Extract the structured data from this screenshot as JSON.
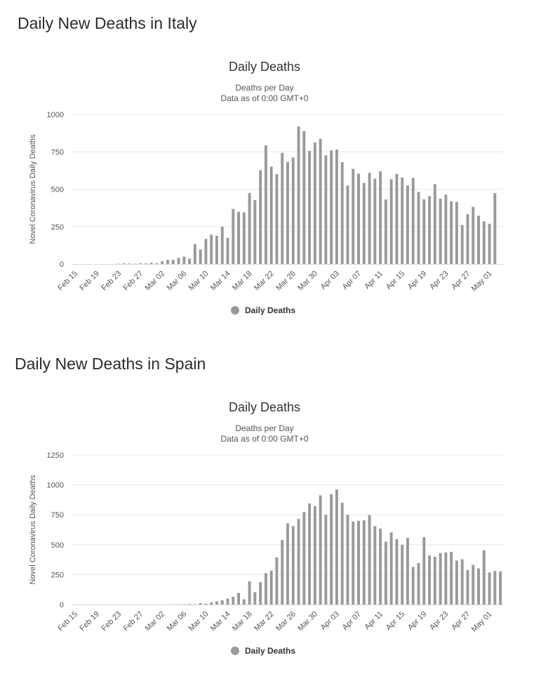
{
  "page": {
    "italy_heading": "Daily New Deaths in Italy",
    "spain_heading": "Daily New Deaths in Spain"
  },
  "chart_data": [
    {
      "id": "italy",
      "type": "bar",
      "title": "Daily Deaths",
      "subtitle_lines": [
        "Deaths per Day",
        "Data as of 0:00 GMT+0"
      ],
      "ylabel": "Novel Coronavirus Daily Deaths",
      "xlabel": "",
      "ylim": [
        0,
        1000
      ],
      "y_ticks": [
        0,
        250,
        500,
        750,
        1000
      ],
      "grid": true,
      "bar_color": "#999999",
      "legend": {
        "label": "Daily Deaths",
        "position": "bottom-center"
      },
      "x_tick_labels": [
        "Feb 15",
        "Feb 19",
        "Feb 23",
        "Feb 27",
        "Mar 02",
        "Mar 06",
        "Mar 10",
        "Mar 14",
        "Mar 18",
        "Mar 22",
        "Mar 26",
        "Mar 30",
        "Apr 03",
        "Apr 07",
        "Apr 11",
        "Apr 15",
        "Apr 19",
        "Apr 23",
        "Apr 27",
        "May 01"
      ],
      "categories": [
        "Feb 15",
        "Feb 16",
        "Feb 17",
        "Feb 18",
        "Feb 19",
        "Feb 20",
        "Feb 21",
        "Feb 22",
        "Feb 23",
        "Feb 24",
        "Feb 25",
        "Feb 26",
        "Feb 27",
        "Feb 28",
        "Feb 29",
        "Mar 01",
        "Mar 02",
        "Mar 03",
        "Mar 04",
        "Mar 05",
        "Mar 06",
        "Mar 07",
        "Mar 08",
        "Mar 09",
        "Mar 10",
        "Mar 11",
        "Mar 12",
        "Mar 13",
        "Mar 14",
        "Mar 15",
        "Mar 16",
        "Mar 17",
        "Mar 18",
        "Mar 19",
        "Mar 20",
        "Mar 21",
        "Mar 22",
        "Mar 23",
        "Mar 24",
        "Mar 25",
        "Mar 26",
        "Mar 27",
        "Mar 28",
        "Mar 29",
        "Mar 30",
        "Mar 31",
        "Apr 01",
        "Apr 02",
        "Apr 03",
        "Apr 04",
        "Apr 05",
        "Apr 06",
        "Apr 07",
        "Apr 08",
        "Apr 09",
        "Apr 10",
        "Apr 11",
        "Apr 12",
        "Apr 13",
        "Apr 14",
        "Apr 15",
        "Apr 16",
        "Apr 17",
        "Apr 18",
        "Apr 19",
        "Apr 20",
        "Apr 21",
        "Apr 22",
        "Apr 23",
        "Apr 24",
        "Apr 25",
        "Apr 26",
        "Apr 27",
        "Apr 28",
        "Apr 29",
        "Apr 30",
        "May 01",
        "May 02",
        "May 03"
      ],
      "values": [
        0,
        0,
        0,
        0,
        0,
        0,
        0,
        0,
        2,
        4,
        3,
        2,
        5,
        4,
        8,
        5,
        18,
        27,
        28,
        41,
        49,
        36,
        133,
        97,
        168,
        196,
        189,
        250,
        175,
        368,
        349,
        345,
        475,
        427,
        627,
        793,
        651,
        601,
        743,
        683,
        712,
        919,
        889,
        756,
        812,
        837,
        727,
        760,
        766,
        681,
        525,
        636,
        604,
        542,
        610,
        570,
        619,
        431,
        566,
        602,
        578,
        525,
        575,
        482,
        433,
        454,
        534,
        437,
        464,
        420,
        415,
        260,
        333,
        382,
        323,
        285,
        269,
        474,
        0
      ]
    },
    {
      "id": "spain",
      "type": "bar",
      "title": "Daily Deaths",
      "subtitle_lines": [
        "Deaths per Day",
        "Data as of 0:00 GMT+0"
      ],
      "ylabel": "Novel Coronavirus Daily Deaths",
      "xlabel": "",
      "ylim": [
        0,
        1250
      ],
      "y_ticks": [
        0,
        250,
        500,
        750,
        1000,
        1250
      ],
      "grid": true,
      "bar_color": "#999999",
      "legend": {
        "label": "Daily Deaths",
        "position": "bottom-center"
      },
      "x_tick_labels": [
        "Feb 15",
        "Feb 19",
        "Feb 23",
        "Feb 27",
        "Mar 02",
        "Mar 06",
        "Mar 10",
        "Mar 14",
        "Mar 18",
        "Mar 22",
        "Mar 26",
        "Mar 30",
        "Apr 03",
        "Apr 07",
        "Apr 11",
        "Apr 15",
        "Apr 19",
        "Apr 23",
        "Apr 27",
        "May 01"
      ],
      "categories": [
        "Feb 15",
        "Feb 16",
        "Feb 17",
        "Feb 18",
        "Feb 19",
        "Feb 20",
        "Feb 21",
        "Feb 22",
        "Feb 23",
        "Feb 24",
        "Feb 25",
        "Feb 26",
        "Feb 27",
        "Feb 28",
        "Feb 29",
        "Mar 01",
        "Mar 02",
        "Mar 03",
        "Mar 04",
        "Mar 05",
        "Mar 06",
        "Mar 07",
        "Mar 08",
        "Mar 09",
        "Mar 10",
        "Mar 11",
        "Mar 12",
        "Mar 13",
        "Mar 14",
        "Mar 15",
        "Mar 16",
        "Mar 17",
        "Mar 18",
        "Mar 19",
        "Mar 20",
        "Mar 21",
        "Mar 22",
        "Mar 23",
        "Mar 24",
        "Mar 25",
        "Mar 26",
        "Mar 27",
        "Mar 28",
        "Mar 29",
        "Mar 30",
        "Mar 31",
        "Apr 01",
        "Apr 02",
        "Apr 03",
        "Apr 04",
        "Apr 05",
        "Apr 06",
        "Apr 07",
        "Apr 08",
        "Apr 09",
        "Apr 10",
        "Apr 11",
        "Apr 12",
        "Apr 13",
        "Apr 14",
        "Apr 15",
        "Apr 16",
        "Apr 17",
        "Apr 18",
        "Apr 19",
        "Apr 20",
        "Apr 21",
        "Apr 22",
        "Apr 23",
        "Apr 24",
        "Apr 25",
        "Apr 26",
        "Apr 27",
        "Apr 28",
        "Apr 29",
        "Apr 30",
        "May 01",
        "May 02",
        "May 03"
      ],
      "values": [
        0,
        0,
        0,
        0,
        0,
        0,
        0,
        0,
        0,
        0,
        0,
        0,
        0,
        0,
        0,
        0,
        0,
        1,
        1,
        1,
        2,
        5,
        3,
        12,
        7,
        18,
        26,
        35,
        50,
        65,
        97,
        44,
        193,
        103,
        187,
        262,
        283,
        394,
        538,
        679,
        656,
        715,
        774,
        844,
        822,
        913,
        748,
        923,
        961,
        850,
        749,
        694,
        700,
        704,
        747,
        655,
        634,
        525,
        603,
        547,
        499,
        557,
        314,
        347,
        563,
        410,
        399,
        430,
        435,
        440,
        367,
        378,
        288,
        331,
        301,
        453,
        268,
        281,
        276
      ]
    }
  ]
}
